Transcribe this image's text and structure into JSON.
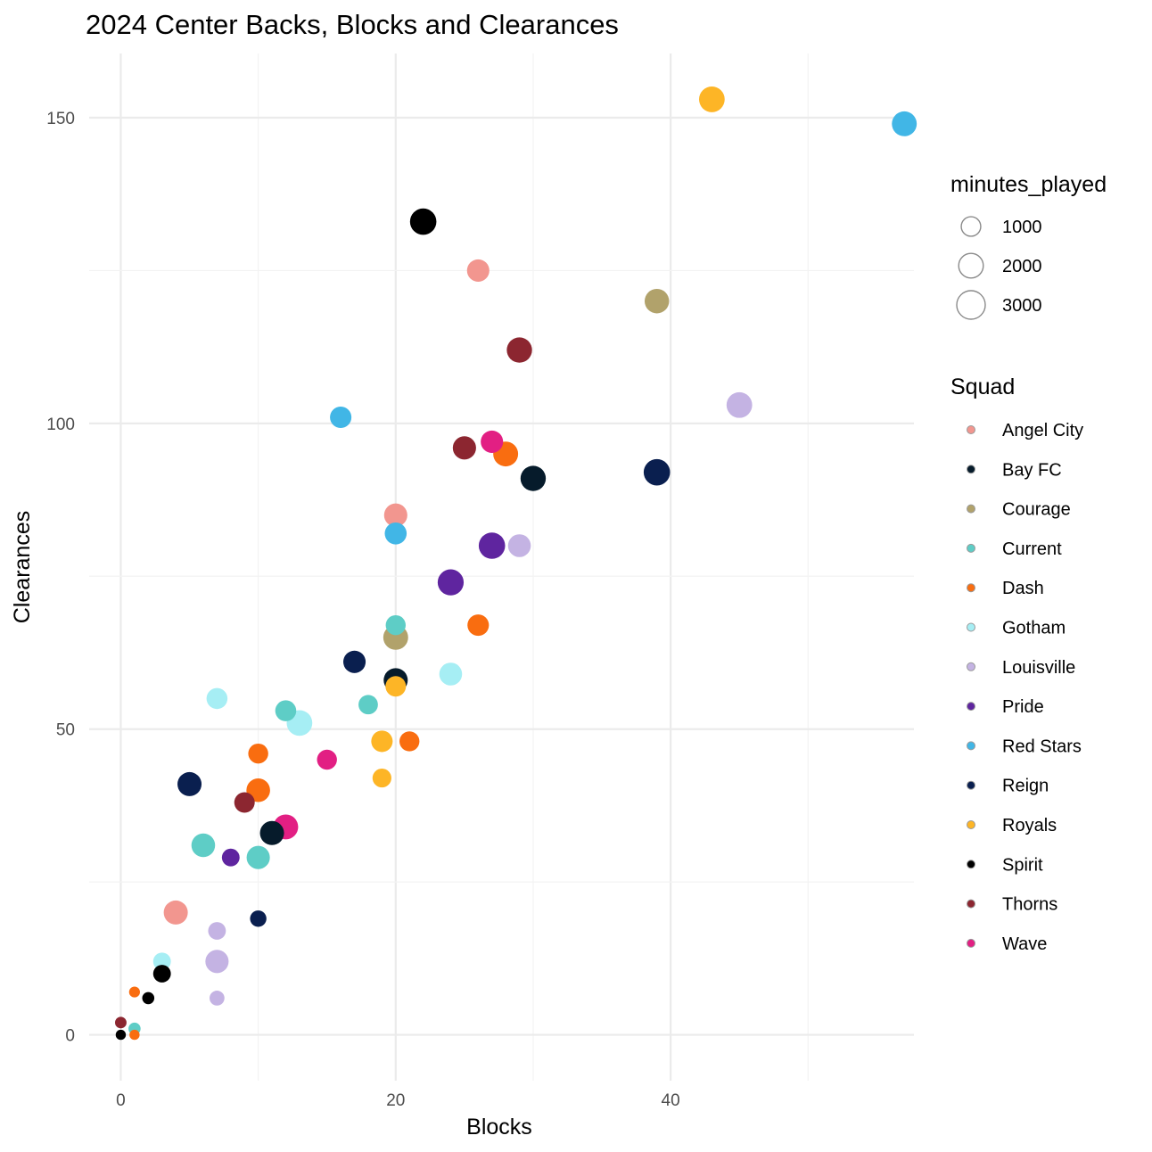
{
  "chart_data": {
    "type": "scatter",
    "title": "2024 Center Backs, Blocks and Clearances",
    "xlabel": "Blocks",
    "ylabel": "Clearances",
    "xlim": [
      -2.3,
      57.7
    ],
    "ylim": [
      -7.5,
      160.5
    ],
    "x_ticks": [
      0,
      20,
      40
    ],
    "y_ticks": [
      0,
      50,
      100,
      150
    ],
    "grid": true,
    "legend_position": "right",
    "size_legend": {
      "title": "minutes_played",
      "breaks": [
        {
          "label": "1000",
          "value": 1000
        },
        {
          "label": "2000",
          "value": 2000
        },
        {
          "label": "3000",
          "value": 3000
        }
      ]
    },
    "color_legend": {
      "title": "Squad",
      "entries": [
        {
          "name": "Angel City",
          "color": "#F2968F"
        },
        {
          "name": "Bay FC",
          "color": "#061B2B"
        },
        {
          "name": "Courage",
          "color": "#B1A26B"
        },
        {
          "name": "Current",
          "color": "#5ECDC6"
        },
        {
          "name": "Dash",
          "color": "#F96D10"
        },
        {
          "name": "Gotham",
          "color": "#A6EEF4"
        },
        {
          "name": "Louisville",
          "color": "#C4B3E3"
        },
        {
          "name": "Pride",
          "color": "#5F259F"
        },
        {
          "name": "Red Stars",
          "color": "#41B6E6"
        },
        {
          "name": "Reign",
          "color": "#0A1F4F"
        },
        {
          "name": "Royals",
          "color": "#FDB526"
        },
        {
          "name": "Spirit",
          "color": "#000000"
        },
        {
          "name": "Thorns",
          "color": "#8C2630"
        },
        {
          "name": "Wave",
          "color": "#E21F83"
        }
      ]
    },
    "series": [
      {
        "name": "Angel City",
        "points": [
          {
            "x": 26,
            "y": 125,
            "minutes": 1900
          },
          {
            "x": 20,
            "y": 85,
            "minutes": 2100
          },
          {
            "x": 4,
            "y": 20,
            "minutes": 2300
          }
        ]
      },
      {
        "name": "Bay FC",
        "points": [
          {
            "x": 30,
            "y": 91,
            "minutes": 2600
          },
          {
            "x": 20,
            "y": 58,
            "minutes": 2300
          },
          {
            "x": 11,
            "y": 33,
            "minutes": 2300
          }
        ]
      },
      {
        "name": "Courage",
        "points": [
          {
            "x": 39,
            "y": 120,
            "minutes": 2400
          },
          {
            "x": 20,
            "y": 65,
            "minutes": 2500
          }
        ]
      },
      {
        "name": "Current",
        "points": [
          {
            "x": 20,
            "y": 67,
            "minutes": 1400
          },
          {
            "x": 12,
            "y": 53,
            "minutes": 1600
          },
          {
            "x": 18,
            "y": 54,
            "minutes": 1300
          },
          {
            "x": 6,
            "y": 31,
            "minutes": 2200
          },
          {
            "x": 10,
            "y": 29,
            "minutes": 2100
          },
          {
            "x": 1,
            "y": 1,
            "minutes": 300
          }
        ]
      },
      {
        "name": "Dash",
        "points": [
          {
            "x": 28,
            "y": 95,
            "minutes": 2500
          },
          {
            "x": 26,
            "y": 67,
            "minutes": 1700
          },
          {
            "x": 21,
            "y": 48,
            "minutes": 1400
          },
          {
            "x": 10,
            "y": 46,
            "minutes": 1400
          },
          {
            "x": 10,
            "y": 40,
            "minutes": 2200
          },
          {
            "x": 1,
            "y": 7,
            "minutes": 200
          },
          {
            "x": 1,
            "y": 0,
            "minutes": 150
          }
        ]
      },
      {
        "name": "Gotham",
        "points": [
          {
            "x": 24,
            "y": 59,
            "minutes": 2000
          },
          {
            "x": 7,
            "y": 55,
            "minutes": 1600
          },
          {
            "x": 13,
            "y": 51,
            "minutes": 2700
          },
          {
            "x": 3,
            "y": 12,
            "minutes": 1000
          }
        ]
      },
      {
        "name": "Louisville",
        "points": [
          {
            "x": 45,
            "y": 103,
            "minutes": 2700
          },
          {
            "x": 29,
            "y": 80,
            "minutes": 2000
          },
          {
            "x": 7,
            "y": 17,
            "minutes": 1000
          },
          {
            "x": 7,
            "y": 12,
            "minutes": 2100
          },
          {
            "x": 7,
            "y": 6,
            "minutes": 600
          }
        ]
      },
      {
        "name": "Pride",
        "points": [
          {
            "x": 27,
            "y": 80,
            "minutes": 2900
          },
          {
            "x": 24,
            "y": 74,
            "minutes": 2800
          },
          {
            "x": 8,
            "y": 29,
            "minutes": 1000
          }
        ]
      },
      {
        "name": "Red Stars",
        "points": [
          {
            "x": 57,
            "y": 149,
            "minutes": 2500
          },
          {
            "x": 16,
            "y": 101,
            "minutes": 1700
          },
          {
            "x": 20,
            "y": 82,
            "minutes": 1800
          }
        ]
      },
      {
        "name": "Reign",
        "points": [
          {
            "x": 39,
            "y": 92,
            "minutes": 2900
          },
          {
            "x": 17,
            "y": 61,
            "minutes": 1900
          },
          {
            "x": 5,
            "y": 41,
            "minutes": 2300
          },
          {
            "x": 10,
            "y": 19,
            "minutes": 800
          }
        ]
      },
      {
        "name": "Royals",
        "points": [
          {
            "x": 43,
            "y": 153,
            "minutes": 2700
          },
          {
            "x": 20,
            "y": 57,
            "minutes": 1500
          },
          {
            "x": 19,
            "y": 48,
            "minutes": 1700
          },
          {
            "x": 19,
            "y": 42,
            "minutes": 1200
          }
        ]
      },
      {
        "name": "Spirit",
        "points": [
          {
            "x": 22,
            "y": 133,
            "minutes": 2900
          },
          {
            "x": 3,
            "y": 10,
            "minutes": 1000
          },
          {
            "x": 2,
            "y": 6,
            "minutes": 300
          },
          {
            "x": 0,
            "y": 0,
            "minutes": 150
          }
        ]
      },
      {
        "name": "Thorns",
        "points": [
          {
            "x": 29,
            "y": 112,
            "minutes": 2600
          },
          {
            "x": 25,
            "y": 96,
            "minutes": 2100
          },
          {
            "x": 9,
            "y": 38,
            "minutes": 1500
          },
          {
            "x": 0,
            "y": 2,
            "minutes": 250
          }
        ]
      },
      {
        "name": "Wave",
        "points": [
          {
            "x": 27,
            "y": 97,
            "minutes": 1900
          },
          {
            "x": 15,
            "y": 45,
            "minutes": 1400
          },
          {
            "x": 12,
            "y": 34,
            "minutes": 2500
          }
        ]
      }
    ]
  }
}
